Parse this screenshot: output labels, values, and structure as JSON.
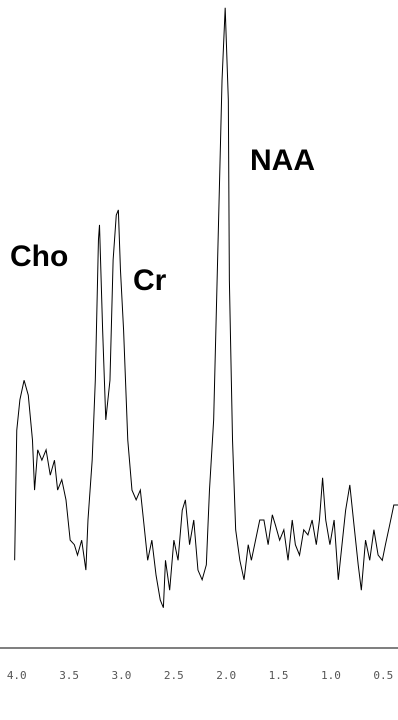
{
  "chart_data": {
    "type": "line",
    "color": "#000000",
    "annotations": [
      "Cho",
      "Cr",
      "NAA"
    ],
    "x": [
      4.02,
      4.0,
      3.97,
      3.93,
      3.89,
      3.85,
      3.83,
      3.8,
      3.76,
      3.72,
      3.68,
      3.64,
      3.61,
      3.57,
      3.53,
      3.49,
      3.45,
      3.42,
      3.38,
      3.34,
      3.32,
      3.28,
      3.25,
      3.22,
      3.21,
      3.18,
      3.15,
      3.11,
      3.08,
      3.05,
      3.03,
      3.01,
      2.98,
      2.94,
      2.9,
      2.86,
      2.82,
      2.79,
      2.75,
      2.71,
      2.67,
      2.63,
      2.6,
      2.58,
      2.54,
      2.5,
      2.46,
      2.42,
      2.39,
      2.35,
      2.31,
      2.27,
      2.23,
      2.19,
      2.16,
      2.12,
      2.08,
      2.04,
      2.01,
      1.98,
      1.97,
      1.94,
      1.91,
      1.87,
      1.83,
      1.79,
      1.76,
      1.72,
      1.68,
      1.64,
      1.6,
      1.56,
      1.53,
      1.49,
      1.45,
      1.41,
      1.37,
      1.34,
      1.3,
      1.26,
      1.22,
      1.18,
      1.14,
      1.11,
      1.08,
      1.05,
      1.01,
      0.97,
      0.93,
      0.9,
      0.86,
      0.82,
      0.78,
      0.74,
      0.71,
      0.67,
      0.63,
      0.59,
      0.55,
      0.51,
      0.48,
      0.44,
      0.4,
      0.36
    ],
    "values": [
      13.8,
      33.8,
      38.5,
      41.5,
      39.2,
      32.3,
      24.6,
      30.8,
      29.2,
      30.8,
      26.9,
      29.2,
      24.6,
      26.2,
      23.1,
      16.9,
      16.2,
      14.6,
      16.9,
      12.3,
      20,
      29.2,
      41.5,
      63.1,
      65.4,
      49.2,
      35.4,
      41.5,
      60,
      66.9,
      67.7,
      58.5,
      49.2,
      32.3,
      24.6,
      23.1,
      24.6,
      20,
      13.8,
      16.9,
      11.5,
      7.7,
      6.5,
      13.8,
      9.2,
      16.9,
      13.8,
      21.5,
      23.1,
      16.2,
      20,
      12.3,
      10.8,
      13.1,
      24.6,
      35.4,
      61.5,
      87.7,
      98.8,
      84.6,
      56.9,
      32.3,
      18.5,
      13.8,
      10.8,
      16.2,
      13.8,
      16.9,
      20,
      20,
      16.2,
      20.8,
      19.2,
      16.9,
      18.5,
      13.8,
      20,
      16.2,
      14.6,
      18.5,
      17.7,
      20,
      16.2,
      20,
      26.5,
      20,
      16.2,
      20,
      10.8,
      15.4,
      21.5,
      25.4,
      19.2,
      13.1,
      9.2,
      16.9,
      13.8,
      18.5,
      14.6,
      13.8,
      16.2,
      19.2,
      22.3,
      22.3
    ],
    "xlim": [
      4.16,
      0.36
    ],
    "ylim": [
      0,
      100
    ],
    "xticks": [
      {
        "value": 4,
        "label": "4.0"
      },
      3.5,
      {
        "value": 3,
        "label": "3.0"
      },
      2.5,
      {
        "value": 2,
        "label": "2.0"
      },
      1.5,
      {
        "value": 1,
        "label": "1.0"
      },
      0.5
    ]
  }
}
